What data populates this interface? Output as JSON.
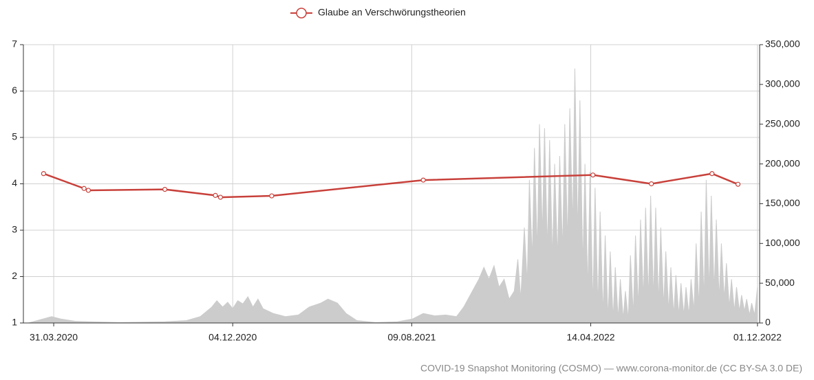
{
  "chart_data": {
    "type": "line",
    "source": "COVID-19 Snapshot Monitoring (COSMO) — www.corona-monitor.de (CC BY-SA 3.0 DE)",
    "xlim": [
      "2020-02-18",
      "2022-12-04"
    ],
    "xticks": [
      {
        "value": "2020-03-31",
        "label": "31.03.2020"
      },
      {
        "value": "2020-12-04",
        "label": "04.12.2020"
      },
      {
        "value": "2021-08-09",
        "label": "09.08.2021"
      },
      {
        "value": "2022-04-14",
        "label": "14.04.2022"
      },
      {
        "value": "2022-12-01",
        "label": "01.12.2022"
      }
    ],
    "ylim": [
      1,
      7
    ],
    "yticks": [
      1,
      2,
      3,
      4,
      5,
      6,
      7
    ],
    "y2lim": [
      0,
      350000
    ],
    "y2ticks": [
      0,
      {
        "value": 50000,
        "label": "50,000"
      },
      {
        "value": 100000,
        "label": "100,000"
      },
      {
        "value": 150000,
        "label": "150,000"
      },
      {
        "value": 200000,
        "label": "200,000"
      },
      {
        "value": 250000,
        "label": "250,000"
      },
      {
        "value": 300000,
        "label": "300,000"
      },
      {
        "value": 350000,
        "label": "350,000"
      }
    ],
    "grid": true,
    "legend": "top",
    "series": [
      {
        "name": "Glaube an Verschwörungstheorien",
        "color": "#c8403a",
        "x": [
          "2020-03-17",
          "2020-05-12",
          "2020-05-18",
          "2020-09-01",
          "2020-11-10",
          "2020-11-17",
          "2021-01-27",
          "2021-08-25",
          "2022-04-17",
          "2022-07-07",
          "2022-09-29",
          "2022-11-04"
        ],
        "values": [
          4.22,
          3.9,
          3.86,
          3.88,
          3.75,
          3.71,
          3.74,
          4.08,
          4.19,
          4.0,
          4.22,
          3.99
        ]
      },
      {
        "type": "area",
        "axis": "y2",
        "color": "#cccccc",
        "x": [
          "2020-02-25",
          "2020-03-20",
          "2020-03-28",
          "2020-04-10",
          "2020-05-01",
          "2020-07-01",
          "2020-09-01",
          "2020-10-01",
          "2020-10-20",
          "2020-11-05",
          "2020-11-12",
          "2020-11-20",
          "2020-11-27",
          "2020-12-04",
          "2020-12-11",
          "2020-12-18",
          "2020-12-25",
          "2021-01-01",
          "2021-01-08",
          "2021-01-15",
          "2021-01-29",
          "2021-02-15",
          "2021-03-05",
          "2021-03-20",
          "2021-04-05",
          "2021-04-15",
          "2021-04-28",
          "2021-05-10",
          "2021-05-25",
          "2021-06-20",
          "2021-07-20",
          "2021-08-10",
          "2021-08-25",
          "2021-09-10",
          "2021-09-25",
          "2021-10-10",
          "2021-10-20",
          "2021-11-01",
          "2021-11-10",
          "2021-11-17",
          "2021-11-24",
          "2021-12-01",
          "2021-12-08",
          "2021-12-15",
          "2021-12-22",
          "2021-12-29",
          "2022-01-03",
          "2022-01-07",
          "2022-01-12",
          "2022-01-16",
          "2022-01-19",
          "2022-01-23",
          "2022-01-26",
          "2022-01-30",
          "2022-02-02",
          "2022-02-06",
          "2022-02-09",
          "2022-02-13",
          "2022-02-16",
          "2022-02-20",
          "2022-02-23",
          "2022-02-27",
          "2022-03-02",
          "2022-03-06",
          "2022-03-09",
          "2022-03-13",
          "2022-03-16",
          "2022-03-20",
          "2022-03-23",
          "2022-03-27",
          "2022-03-30",
          "2022-04-03",
          "2022-04-06",
          "2022-04-10",
          "2022-04-13",
          "2022-04-17",
          "2022-04-20",
          "2022-04-24",
          "2022-04-27",
          "2022-05-01",
          "2022-05-04",
          "2022-05-08",
          "2022-05-11",
          "2022-05-15",
          "2022-05-18",
          "2022-05-22",
          "2022-05-25",
          "2022-05-29",
          "2022-06-01",
          "2022-06-05",
          "2022-06-08",
          "2022-06-12",
          "2022-06-15",
          "2022-06-19",
          "2022-06-22",
          "2022-06-26",
          "2022-06-29",
          "2022-07-03",
          "2022-07-06",
          "2022-07-10",
          "2022-07-13",
          "2022-07-17",
          "2022-07-20",
          "2022-07-24",
          "2022-07-27",
          "2022-07-31",
          "2022-08-03",
          "2022-08-07",
          "2022-08-10",
          "2022-08-14",
          "2022-08-17",
          "2022-08-21",
          "2022-08-24",
          "2022-08-28",
          "2022-08-31",
          "2022-09-04",
          "2022-09-07",
          "2022-09-11",
          "2022-09-14",
          "2022-09-18",
          "2022-09-21",
          "2022-09-25",
          "2022-09-28",
          "2022-10-02",
          "2022-10-05",
          "2022-10-09",
          "2022-10-12",
          "2022-10-16",
          "2022-10-19",
          "2022-10-23",
          "2022-10-26",
          "2022-10-30",
          "2022-11-02",
          "2022-11-06",
          "2022-11-09",
          "2022-11-13",
          "2022-11-16",
          "2022-11-20",
          "2022-11-23",
          "2022-11-27",
          "2022-12-01"
        ],
        "values": [
          0,
          6000,
          8000,
          5000,
          2000,
          500,
          1500,
          3000,
          8000,
          20000,
          28000,
          20000,
          26000,
          18000,
          28000,
          24000,
          33000,
          20000,
          30000,
          18000,
          12000,
          8000,
          10000,
          20000,
          25000,
          30000,
          25000,
          12000,
          3000,
          500,
          1500,
          5000,
          12000,
          9000,
          10000,
          8000,
          20000,
          40000,
          55000,
          70000,
          55000,
          72000,
          45000,
          55000,
          30000,
          40000,
          80000,
          30000,
          120000,
          50000,
          180000,
          80000,
          220000,
          90000,
          250000,
          110000,
          245000,
          90000,
          230000,
          80000,
          200000,
          80000,
          210000,
          90000,
          250000,
          100000,
          270000,
          120000,
          320000,
          110000,
          280000,
          70000,
          200000,
          40000,
          190000,
          20000,
          170000,
          20000,
          140000,
          10000,
          110000,
          5000,
          90000,
          5000,
          70000,
          5000,
          55000,
          5000,
          40000,
          5000,
          85000,
          10000,
          110000,
          20000,
          130000,
          30000,
          145000,
          30000,
          160000,
          30000,
          145000,
          25000,
          120000,
          20000,
          90000,
          15000,
          70000,
          10000,
          60000,
          10000,
          50000,
          10000,
          45000,
          10000,
          55000,
          15000,
          100000,
          20000,
          140000,
          30000,
          180000,
          40000,
          160000,
          40000,
          130000,
          30000,
          100000,
          30000,
          75000,
          20000,
          55000,
          15000,
          45000,
          15000,
          35000,
          15000,
          30000,
          10000,
          25000,
          10000,
          45000
        ]
      }
    ]
  }
}
